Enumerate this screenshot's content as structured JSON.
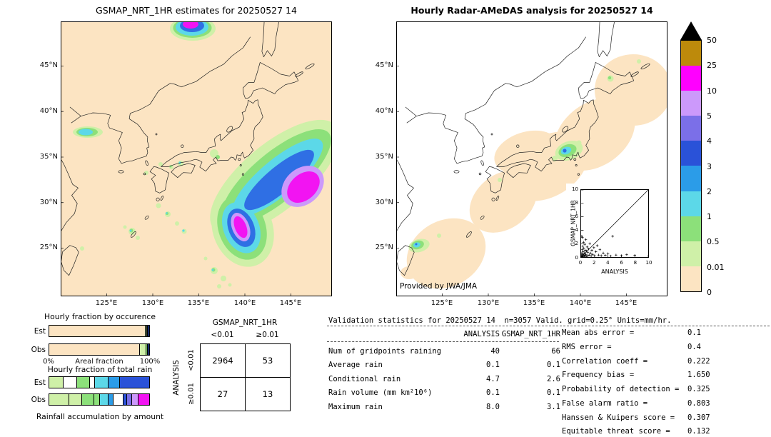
{
  "colorbar": {
    "labels": [
      "50",
      "25",
      "10",
      "5",
      "4",
      "3",
      "2",
      "1",
      "0.5",
      "0.01",
      "0"
    ],
    "colors": [
      "#bd8a0b",
      "#ff00ff",
      "#cc99fb",
      "#7b6fe8",
      "#2a52d8",
      "#2b9ce8",
      "#5cd8e8",
      "#8ce07a",
      "#cff0a8",
      "#fce4c2"
    ],
    "overflow_color": "#000000"
  },
  "chart_data": [
    {
      "type": "heatmap",
      "title": "GSMAP_NRT_1HR estimates for 20250527 14",
      "x_ticks": [
        "125°E",
        "130°E",
        "135°E",
        "140°E",
        "145°E"
      ],
      "y_ticks": [
        "45°N",
        "40°N",
        "35°N",
        "30°N",
        "25°N"
      ],
      "units": "mm/hr",
      "levels": [
        0,
        0.01,
        0.5,
        1,
        2,
        3,
        4,
        5,
        10,
        25,
        50
      ],
      "note": "GSMaP precipitation over Japan; heavy rain band southeast of Honshu with magenta cores"
    },
    {
      "type": "heatmap",
      "title": "Hourly Radar-AMeDAS analysis for 20250527 14",
      "x_ticks": [
        "125°E",
        "130°E",
        "135°E",
        "140°E",
        "145°E"
      ],
      "y_ticks": [
        "45°N",
        "40°N",
        "35°N",
        "30°N",
        "25°N"
      ],
      "units": "mm/hr",
      "levels": [
        0,
        0.01,
        0.5,
        1,
        2,
        3,
        4,
        5,
        10,
        25,
        50
      ],
      "credit": "Provided by JWA/JMA"
    },
    {
      "type": "scatter",
      "xlabel": "ANALYSIS",
      "ylabel": "GSMAP_NRT_1HR",
      "xlim": [
        0,
        10
      ],
      "ylim": [
        0,
        10
      ],
      "ticks": [
        0,
        2,
        4,
        6,
        8,
        10
      ],
      "points": [
        [
          0.05,
          0.05
        ],
        [
          0.1,
          0.2
        ],
        [
          0.1,
          0.6
        ],
        [
          0.15,
          1.1
        ],
        [
          0.2,
          0.05
        ],
        [
          0.2,
          0.4
        ],
        [
          0.25,
          1.6
        ],
        [
          0.3,
          0.1
        ],
        [
          0.3,
          0.8
        ],
        [
          0.35,
          2.2
        ],
        [
          0.4,
          0.3
        ],
        [
          0.4,
          1.3
        ],
        [
          0.5,
          0.1
        ],
        [
          0.5,
          0.6
        ],
        [
          0.55,
          1.9
        ],
        [
          0.6,
          0.2
        ],
        [
          0.6,
          1.0
        ],
        [
          0.7,
          0.4
        ],
        [
          0.7,
          2.6
        ],
        [
          0.8,
          0.1
        ],
        [
          0.8,
          0.9
        ],
        [
          0.9,
          1.5
        ],
        [
          1.0,
          0.2
        ],
        [
          1.0,
          0.7
        ],
        [
          1.1,
          1.2
        ],
        [
          1.2,
          0.3
        ],
        [
          1.3,
          2.0
        ],
        [
          1.4,
          0.6
        ],
        [
          1.5,
          0.15
        ],
        [
          1.6,
          1.0
        ],
        [
          1.7,
          0.4
        ],
        [
          1.9,
          1.4
        ],
        [
          2.0,
          0.2
        ],
        [
          2.2,
          0.8
        ],
        [
          2.4,
          1.7
        ],
        [
          2.6,
          0.3
        ],
        [
          2.8,
          1.1
        ],
        [
          3.0,
          0.2
        ],
        [
          3.3,
          0.6
        ],
        [
          3.6,
          0.25
        ],
        [
          4.0,
          0.5
        ],
        [
          4.4,
          0.15
        ],
        [
          4.7,
          3.1
        ],
        [
          5.2,
          0.3
        ],
        [
          6.0,
          0.2
        ],
        [
          6.8,
          0.35
        ],
        [
          8.0,
          0.25
        ],
        [
          0.2,
          2.9
        ],
        [
          0.1,
          3.1
        ]
      ]
    },
    {
      "type": "bar",
      "title": "Hourly fraction by occurence",
      "rows": [
        {
          "label": "Est",
          "segments": [
            [
              "#fce4c2",
              96.4
            ],
            [
              "#cff0a8",
              1.6
            ],
            [
              "#8ce07a",
              0.8
            ],
            [
              "#5cd8e8",
              0.6
            ],
            [
              "#2a52d8",
              0.6
            ]
          ]
        },
        {
          "label": "Obs",
          "segments": [
            [
              "#fce4c2",
              91.0
            ],
            [
              "#cff0a8",
              6.0
            ],
            [
              "#8ce07a",
              1.6
            ],
            [
              "#5cd8e8",
              0.8
            ],
            [
              "#2a52d8",
              0.6
            ]
          ]
        }
      ],
      "axis": {
        "left": "0%",
        "center": "Areal fraction",
        "right": "100%"
      }
    },
    {
      "type": "bar",
      "title": "Hourly fraction of total rain",
      "rows": [
        {
          "label": "Est",
          "segments": [
            [
              "#cff0a8",
              14
            ],
            [
              "#ffffff",
              14
            ],
            [
              "#8ce07a",
              13
            ],
            [
              "#ffffff",
              5
            ],
            [
              "#5cd8e8",
              13
            ],
            [
              "#2b9ce8",
              12
            ],
            [
              "#2a52d8",
              29
            ]
          ]
        },
        {
          "label": "Obs",
          "segments": [
            [
              "#cff0a8",
              20
            ],
            [
              "#cff0a8",
              13
            ],
            [
              "#8ce07a",
              12
            ],
            [
              "#8ce07a",
              6
            ],
            [
              "#5cd8e8",
              8
            ],
            [
              "#2b9ce8",
              5
            ],
            [
              "#ffffff",
              10
            ],
            [
              "#2a52d8",
              4
            ],
            [
              "#7b6fe8",
              5
            ],
            [
              "#cc99fb",
              6
            ],
            [
              "#f214f2",
              11
            ]
          ]
        }
      ],
      "caption": "Rainfall accumulation by amount"
    },
    {
      "type": "table",
      "name": "contingency",
      "col_group": "GSMAP_NRT_1HR",
      "col_labels": [
        "<0.01",
        "≥0.01"
      ],
      "row_group": "ANALYSIS",
      "row_labels": [
        "<0.01",
        "≥0.01"
      ],
      "values": [
        [
          "2964",
          "53"
        ],
        [
          "27",
          "13"
        ]
      ]
    },
    {
      "type": "table",
      "name": "validation",
      "title": "Validation statistics for 20250527 14  n=3057 Valid. grid=0.25° Units=mm/hr.",
      "col_headers": [
        "ANALYSIS",
        "GSMAP_NRT_1HR"
      ],
      "rows": [
        [
          "Num of gridpoints raining",
          "40",
          "66"
        ],
        [
          "Average rain",
          "0.1",
          "0.1"
        ],
        [
          "Conditional rain",
          "4.7",
          "2.6"
        ],
        [
          "Rain volume (mm km²10⁶)",
          "0.1",
          "0.1"
        ],
        [
          "Maximum rain",
          "8.0",
          "3.1"
        ]
      ],
      "scores": [
        [
          "Mean abs error =",
          "0.1"
        ],
        [
          "RMS error =",
          "0.4"
        ],
        [
          "Correlation coeff =",
          "0.222"
        ],
        [
          "Frequency bias =",
          "1.650"
        ],
        [
          "Probability of detection =",
          "0.325"
        ],
        [
          "False alarm ratio =",
          "0.803"
        ],
        [
          "Hanssen & Kuipers score =",
          "0.307"
        ],
        [
          "Equitable threat score =",
          "0.132"
        ]
      ]
    }
  ]
}
